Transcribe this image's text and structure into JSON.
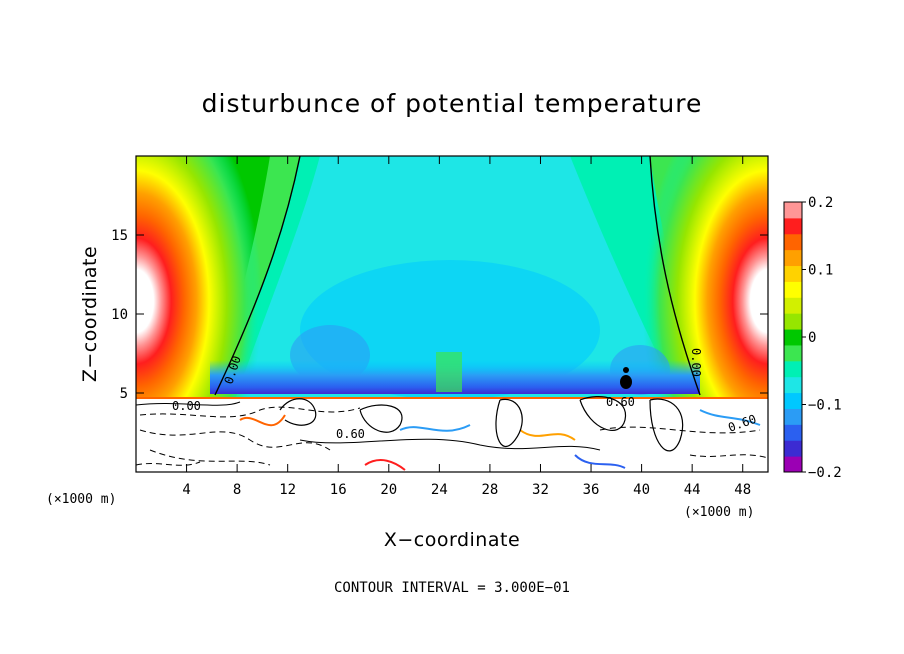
{
  "chart_data": {
    "type": "heatmap",
    "title": "disturbunce of potential temperature",
    "xlabel": "X−coordinate",
    "ylabel": "Z−coordinate",
    "x_unit": "(×1000 m)",
    "x_unit_right": "(×1000 m)",
    "xlim": [
      0,
      50
    ],
    "ylim": [
      0,
      20
    ],
    "x_ticks": [
      4,
      8,
      12,
      16,
      20,
      24,
      28,
      32,
      36,
      40,
      44,
      48
    ],
    "y_ticks": [
      5,
      10,
      15
    ],
    "colorbar": {
      "range": [
        -0.2,
        0.2
      ],
      "tick_labels": [
        "0.2",
        "0.1",
        "0",
        "−0.1",
        "−0.2"
      ],
      "tick_values": [
        0.2,
        0.1,
        0,
        -0.1,
        -0.2
      ],
      "levels": [
        -0.2,
        -0.175,
        -0.15,
        -0.125,
        -0.1,
        -0.075,
        -0.05,
        -0.025,
        0,
        0.025,
        0.05,
        0.075,
        0.1,
        0.125,
        0.15,
        0.175,
        0.2
      ],
      "colors": [
        "#9b00b4",
        "#3c2bd2",
        "#2b60f0",
        "#2b9cf5",
        "#00c8ff",
        "#1ee6e6",
        "#00f0b4",
        "#3ce650",
        "#00c800",
        "#96e600",
        "#d2f000",
        "#ffff00",
        "#ffd200",
        "#ffa000",
        "#ff6400",
        "#ff1e1e",
        "#ff9696"
      ]
    },
    "contour_labels": [
      "0.00",
      "0.00",
      "0.00",
      "0.60",
      "0.60",
      "0.60"
    ],
    "footer": "CONTOUR INTERVAL = 3.000E−01"
  }
}
